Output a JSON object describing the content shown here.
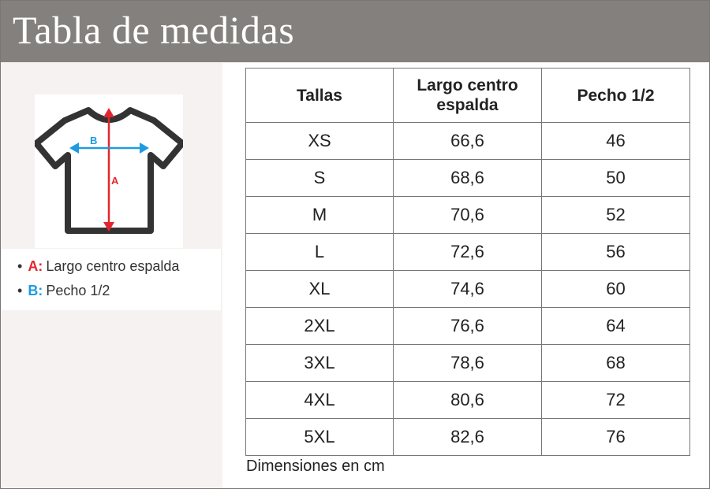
{
  "title": "Tabla de medidas",
  "diagram": {
    "label_a": "A",
    "label_b": "B",
    "color_a": "#e3262e",
    "color_b": "#1e9be0",
    "icon": "tshirt-icon"
  },
  "legend": [
    {
      "key": "A:",
      "text": "Largo centro espalda"
    },
    {
      "key": "B:",
      "text": "Pecho 1/2"
    }
  ],
  "table": {
    "headers": [
      "Tallas",
      "Largo centro espalda",
      "Pecho 1/2"
    ],
    "rows": [
      [
        "XS",
        "66,6",
        "46"
      ],
      [
        "S",
        "68,6",
        "50"
      ],
      [
        "M",
        "70,6",
        "52"
      ],
      [
        "L",
        "72,6",
        "56"
      ],
      [
        "XL",
        "74,6",
        "60"
      ],
      [
        "2XL",
        "76,6",
        "64"
      ],
      [
        "3XL",
        "78,6",
        "68"
      ],
      [
        "4XL",
        "80,6",
        "72"
      ],
      [
        "5XL",
        "82,6",
        "76"
      ]
    ]
  },
  "note": "Dimensiones en cm"
}
